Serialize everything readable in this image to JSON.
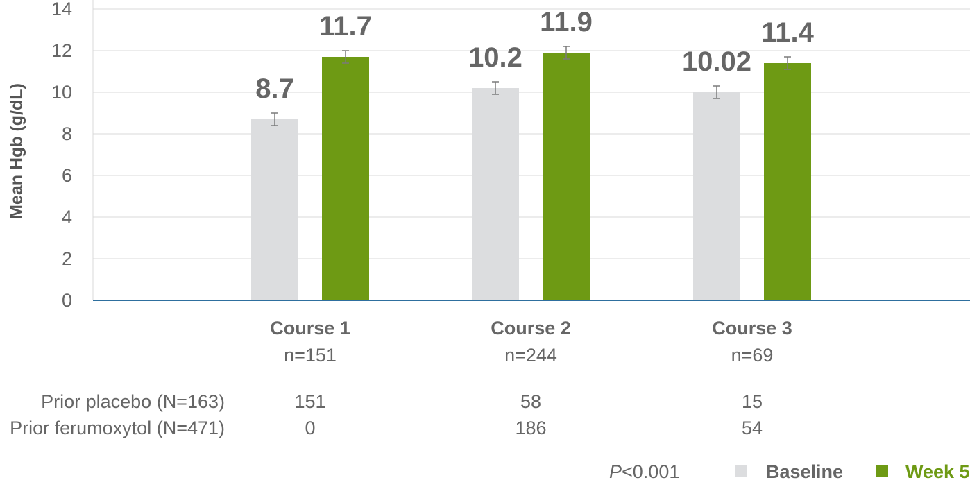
{
  "chart_data": {
    "type": "bar",
    "ylabel": "Mean Hgb (g/dL)",
    "ylim": [
      0,
      14
    ],
    "yticks": [
      0,
      2,
      4,
      6,
      8,
      10,
      12,
      14
    ],
    "grid": true,
    "categories": [
      "Course 1",
      "Course 2",
      "Course 3"
    ],
    "category_n": [
      "n=151",
      "n=244",
      "n=69"
    ],
    "series": [
      {
        "name": "Baseline",
        "color": "#dcdddf",
        "values": [
          8.7,
          10.2,
          10.0
        ],
        "labels": [
          "8.7",
          "10.2",
          "10.02"
        ],
        "error": [
          0.3,
          0.3,
          0.3
        ]
      },
      {
        "name": "Week 5",
        "color": "#6e9a14",
        "values": [
          11.7,
          11.9,
          11.4
        ],
        "labels": [
          "11.7",
          "11.9",
          "11.4"
        ],
        "error": [
          0.3,
          0.3,
          0.3
        ]
      }
    ],
    "table": [
      {
        "label": "Prior placebo (N=163)",
        "values": [
          "151",
          "58",
          "15"
        ]
      },
      {
        "label": "Prior ferumoxytol (N=471)",
        "values": [
          "0",
          "186",
          "54"
        ]
      }
    ],
    "p_value": {
      "italic": "P",
      "rest": "<0.001"
    },
    "legend_position": "bottom-right"
  }
}
